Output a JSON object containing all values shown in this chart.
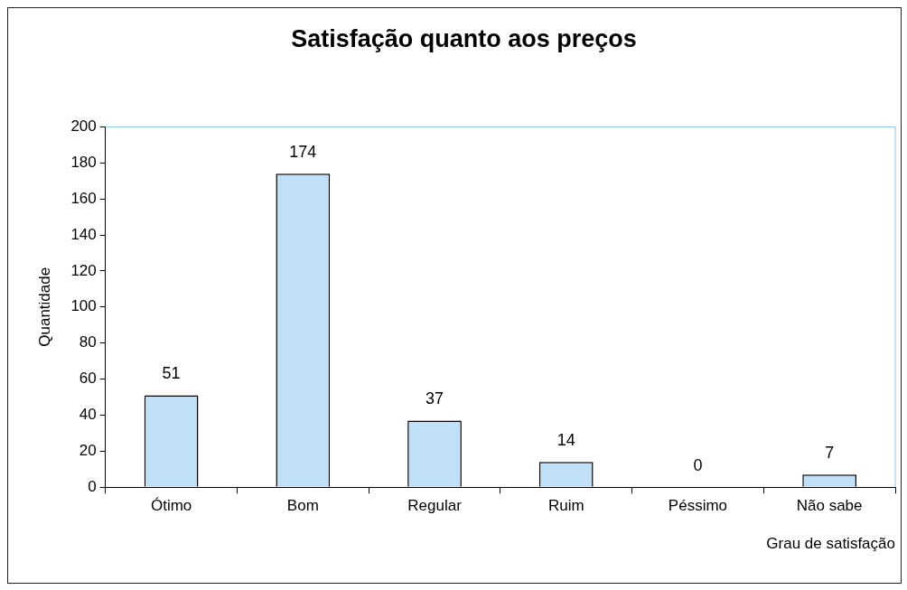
{
  "chart_data": {
    "type": "bar",
    "title": "Satisfação quanto aos preços",
    "xlabel": "Grau de satisfação",
    "ylabel": "Quantidade",
    "categories": [
      "Ótimo",
      "Bom",
      "Regular",
      "Ruim",
      "Péssimo",
      "Não sabe"
    ],
    "values": [
      51,
      174,
      37,
      14,
      0,
      7
    ],
    "color": "#bfe0f7",
    "ylim": [
      0,
      200
    ],
    "yticks": [
      0,
      20,
      40,
      60,
      80,
      100,
      120,
      140,
      160,
      180,
      200
    ],
    "grid": false,
    "legend": false,
    "data_labels": true
  }
}
